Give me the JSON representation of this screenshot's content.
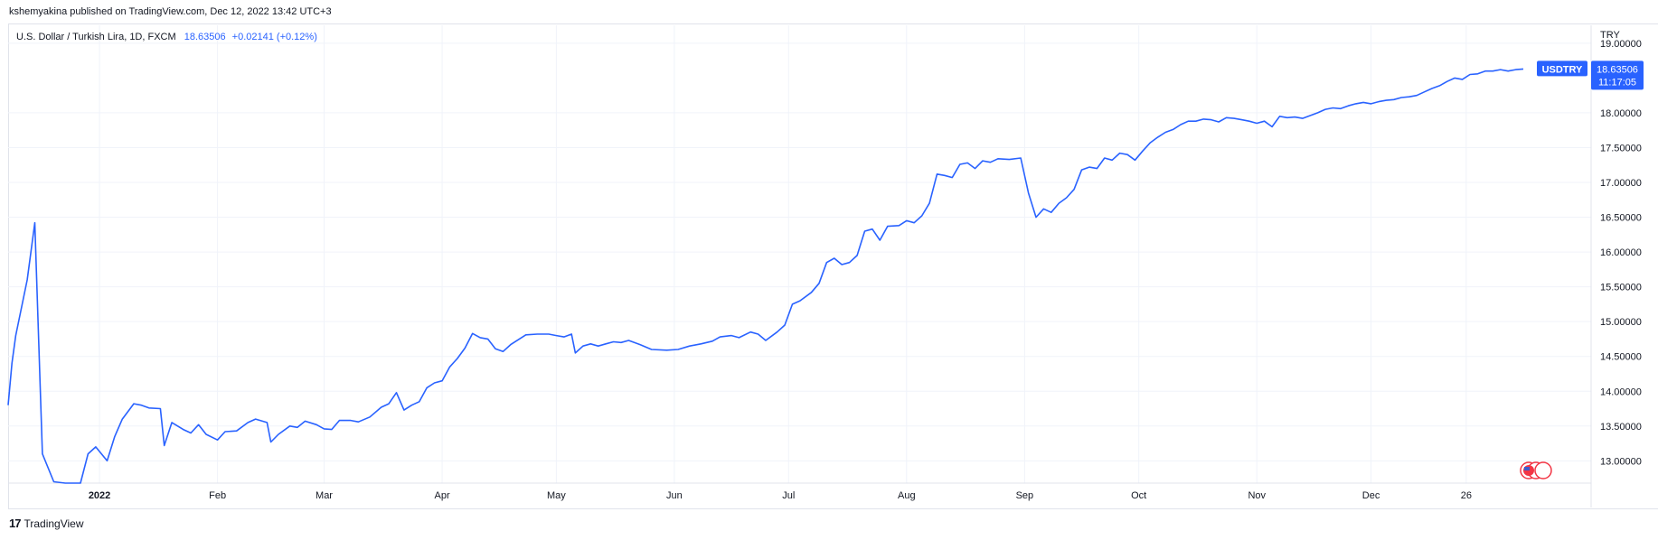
{
  "header": {
    "publish_text": "kshemyakina published on TradingView.com, Dec 12, 2022 13:42 UTC+3"
  },
  "legend": {
    "symbol_text": "U.S. Dollar / Turkish Lira, 1D, FXCM",
    "last_value": "18.63506",
    "change": "+0.02141 (+0.12%)"
  },
  "price_badge": {
    "ticker": "USDTRY",
    "price": "18.63506",
    "countdown": "11:17:05",
    "color": "#2962ff"
  },
  "footer": {
    "brand": "TradingView",
    "logo_icon": "tradingview-logo-icon"
  },
  "colors": {
    "line": "#2962ff",
    "grid": "#f0f3fa",
    "border": "#e0e3eb"
  },
  "chart_data": {
    "type": "line",
    "title": "U.S. Dollar / Turkish Lira, 1D, FXCM",
    "xlabel": "",
    "ylabel": "",
    "currency_label": "TRY",
    "grid": true,
    "ylim": [
      12.68,
      19.05
    ],
    "y_ticks": [
      "19.00000",
      "18.00000",
      "17.50000",
      "17.00000",
      "16.50000",
      "16.00000",
      "15.50000",
      "15.00000",
      "14.50000",
      "14.00000",
      "13.50000",
      "13.00000"
    ],
    "x_ticks": [
      {
        "label": "2022",
        "date": "2022-01-01",
        "bold": true
      },
      {
        "label": "Feb",
        "date": "2022-02-01"
      },
      {
        "label": "Mar",
        "date": "2022-03-01"
      },
      {
        "label": "Apr",
        "date": "2022-04-01"
      },
      {
        "label": "May",
        "date": "2022-05-01"
      },
      {
        "label": "Jun",
        "date": "2022-06-01"
      },
      {
        "label": "Jul",
        "date": "2022-07-01"
      },
      {
        "label": "Aug",
        "date": "2022-08-01"
      },
      {
        "label": "Sep",
        "date": "2022-09-01"
      },
      {
        "label": "Oct",
        "date": "2022-10-01"
      },
      {
        "label": "Nov",
        "date": "2022-11-01"
      },
      {
        "label": "Dec",
        "date": "2022-12-01"
      },
      {
        "label": "26",
        "date": "2022-12-26"
      }
    ],
    "series": [
      {
        "name": "USDTRY",
        "points": [
          [
            "2021-12-08",
            13.8
          ],
          [
            "2021-12-09",
            14.4
          ],
          [
            "2021-12-10",
            14.8
          ],
          [
            "2021-12-13",
            15.6
          ],
          [
            "2021-12-15",
            16.42
          ],
          [
            "2021-12-17",
            13.1
          ],
          [
            "2021-12-20",
            12.7
          ],
          [
            "2021-12-23",
            12.4
          ],
          [
            "2021-12-27",
            12.6
          ],
          [
            "2021-12-29",
            13.1
          ],
          [
            "2021-12-31",
            13.2
          ],
          [
            "2022-01-03",
            13.0
          ],
          [
            "2022-01-05",
            13.35
          ],
          [
            "2022-01-07",
            13.6
          ],
          [
            "2022-01-10",
            13.82
          ],
          [
            "2022-01-12",
            13.8
          ],
          [
            "2022-01-14",
            13.76
          ],
          [
            "2022-01-17",
            13.75
          ],
          [
            "2022-01-18",
            13.22
          ],
          [
            "2022-01-20",
            13.55
          ],
          [
            "2022-01-23",
            13.45
          ],
          [
            "2022-01-25",
            13.4
          ],
          [
            "2022-01-27",
            13.52
          ],
          [
            "2022-01-29",
            13.38
          ],
          [
            "2022-02-01",
            13.3
          ],
          [
            "2022-02-03",
            13.42
          ],
          [
            "2022-02-06",
            13.43
          ],
          [
            "2022-02-09",
            13.55
          ],
          [
            "2022-02-11",
            13.6
          ],
          [
            "2022-02-14",
            13.55
          ],
          [
            "2022-02-15",
            13.27
          ],
          [
            "2022-02-17",
            13.38
          ],
          [
            "2022-02-20",
            13.5
          ],
          [
            "2022-02-22",
            13.48
          ],
          [
            "2022-02-24",
            13.57
          ],
          [
            "2022-02-27",
            13.52
          ],
          [
            "2022-03-01",
            13.46
          ],
          [
            "2022-03-03",
            13.45
          ],
          [
            "2022-03-05",
            13.58
          ],
          [
            "2022-03-08",
            13.58
          ],
          [
            "2022-03-10",
            13.56
          ],
          [
            "2022-03-13",
            13.63
          ],
          [
            "2022-03-16",
            13.77
          ],
          [
            "2022-03-18",
            13.82
          ],
          [
            "2022-03-20",
            13.98
          ],
          [
            "2022-03-22",
            13.73
          ],
          [
            "2022-03-24",
            13.8
          ],
          [
            "2022-03-26",
            13.85
          ],
          [
            "2022-03-28",
            14.05
          ],
          [
            "2022-03-30",
            14.12
          ],
          [
            "2022-04-01",
            14.15
          ],
          [
            "2022-04-03",
            14.35
          ],
          [
            "2022-04-05",
            14.47
          ],
          [
            "2022-04-07",
            14.62
          ],
          [
            "2022-04-09",
            14.83
          ],
          [
            "2022-04-11",
            14.77
          ],
          [
            "2022-04-13",
            14.75
          ],
          [
            "2022-04-15",
            14.61
          ],
          [
            "2022-04-17",
            14.57
          ],
          [
            "2022-04-19",
            14.67
          ],
          [
            "2022-04-21",
            14.74
          ],
          [
            "2022-04-23",
            14.81
          ],
          [
            "2022-04-26",
            14.82
          ],
          [
            "2022-04-29",
            14.82
          ],
          [
            "2022-05-01",
            14.8
          ],
          [
            "2022-05-03",
            14.78
          ],
          [
            "2022-05-05",
            14.82
          ],
          [
            "2022-05-06",
            14.55
          ],
          [
            "2022-05-08",
            14.65
          ],
          [
            "2022-05-10",
            14.68
          ],
          [
            "2022-05-12",
            14.65
          ],
          [
            "2022-05-14",
            14.68
          ],
          [
            "2022-05-16",
            14.71
          ],
          [
            "2022-05-18",
            14.7
          ],
          [
            "2022-05-20",
            14.73
          ],
          [
            "2022-05-23",
            14.67
          ],
          [
            "2022-05-26",
            14.6
          ],
          [
            "2022-05-30",
            14.59
          ],
          [
            "2022-06-02",
            14.6
          ],
          [
            "2022-06-05",
            14.65
          ],
          [
            "2022-06-08",
            14.68
          ],
          [
            "2022-06-11",
            14.72
          ],
          [
            "2022-06-13",
            14.78
          ],
          [
            "2022-06-16",
            14.8
          ],
          [
            "2022-06-18",
            14.77
          ],
          [
            "2022-06-21",
            14.85
          ],
          [
            "2022-06-23",
            14.82
          ],
          [
            "2022-06-25",
            14.73
          ],
          [
            "2022-06-28",
            14.85
          ],
          [
            "2022-06-30",
            14.95
          ],
          [
            "2022-07-02",
            15.25
          ],
          [
            "2022-07-04",
            15.3
          ],
          [
            "2022-07-07",
            15.42
          ],
          [
            "2022-07-09",
            15.55
          ],
          [
            "2022-07-11",
            15.85
          ],
          [
            "2022-07-13",
            15.91
          ],
          [
            "2022-07-15",
            15.82
          ],
          [
            "2022-07-17",
            15.85
          ],
          [
            "2022-07-19",
            15.95
          ],
          [
            "2022-07-21",
            16.3
          ],
          [
            "2022-07-23",
            16.33
          ],
          [
            "2022-07-25",
            16.17
          ],
          [
            "2022-07-27",
            16.37
          ],
          [
            "2022-07-30",
            16.38
          ],
          [
            "2022-08-01",
            16.45
          ],
          [
            "2022-08-03",
            16.42
          ],
          [
            "2022-08-05",
            16.52
          ],
          [
            "2022-08-07",
            16.7
          ],
          [
            "2022-08-09",
            17.12
          ],
          [
            "2022-08-11",
            17.1
          ],
          [
            "2022-08-13",
            17.07
          ],
          [
            "2022-08-15",
            17.26
          ],
          [
            "2022-08-17",
            17.28
          ],
          [
            "2022-08-19",
            17.2
          ],
          [
            "2022-08-21",
            17.31
          ],
          [
            "2022-08-23",
            17.29
          ],
          [
            "2022-08-25",
            17.34
          ],
          [
            "2022-08-28",
            17.33
          ],
          [
            "2022-08-31",
            17.35
          ],
          [
            "2022-09-02",
            16.85
          ],
          [
            "2022-09-04",
            16.5
          ],
          [
            "2022-09-06",
            16.62
          ],
          [
            "2022-09-08",
            16.57
          ],
          [
            "2022-09-10",
            16.7
          ],
          [
            "2022-09-12",
            16.78
          ],
          [
            "2022-09-14",
            16.9
          ],
          [
            "2022-09-16",
            17.18
          ],
          [
            "2022-09-18",
            17.22
          ],
          [
            "2022-09-20",
            17.2
          ],
          [
            "2022-09-22",
            17.35
          ],
          [
            "2022-09-24",
            17.32
          ],
          [
            "2022-09-26",
            17.42
          ],
          [
            "2022-09-28",
            17.4
          ],
          [
            "2022-09-30",
            17.32
          ],
          [
            "2022-10-02",
            17.45
          ],
          [
            "2022-10-04",
            17.57
          ],
          [
            "2022-10-06",
            17.65
          ],
          [
            "2022-10-08",
            17.72
          ],
          [
            "2022-10-10",
            17.76
          ],
          [
            "2022-10-12",
            17.83
          ],
          [
            "2022-10-14",
            17.88
          ],
          [
            "2022-10-16",
            17.88
          ],
          [
            "2022-10-18",
            17.91
          ],
          [
            "2022-10-20",
            17.9
          ],
          [
            "2022-10-22",
            17.87
          ],
          [
            "2022-10-24",
            17.93
          ],
          [
            "2022-10-26",
            17.92
          ],
          [
            "2022-10-28",
            17.9
          ],
          [
            "2022-10-30",
            17.88
          ],
          [
            "2022-11-01",
            17.85
          ],
          [
            "2022-11-03",
            17.88
          ],
          [
            "2022-11-05",
            17.8
          ],
          [
            "2022-11-07",
            17.95
          ],
          [
            "2022-11-09",
            17.93
          ],
          [
            "2022-11-11",
            17.94
          ],
          [
            "2022-11-13",
            17.92
          ],
          [
            "2022-11-15",
            17.96
          ],
          [
            "2022-11-17",
            18.0
          ],
          [
            "2022-11-19",
            18.05
          ],
          [
            "2022-11-21",
            18.07
          ],
          [
            "2022-11-23",
            18.06
          ],
          [
            "2022-11-25",
            18.1
          ],
          [
            "2022-11-27",
            18.13
          ],
          [
            "2022-11-29",
            18.15
          ],
          [
            "2022-12-01",
            18.13
          ],
          [
            "2022-12-03",
            18.16
          ],
          [
            "2022-12-05",
            18.18
          ],
          [
            "2022-12-07",
            18.19
          ],
          [
            "2022-12-09",
            18.22
          ],
          [
            "2022-12-11",
            18.23
          ],
          [
            "2022-12-13",
            18.25
          ],
          [
            "2022-12-15",
            18.3
          ],
          [
            "2022-12-17",
            18.35
          ],
          [
            "2022-12-19",
            18.39
          ],
          [
            "2022-12-21",
            18.45
          ],
          [
            "2022-12-23",
            18.5
          ],
          [
            "2022-12-25",
            18.48
          ],
          [
            "2022-12-27",
            18.55
          ],
          [
            "2022-12-29",
            18.56
          ],
          [
            "2022-12-31",
            18.6
          ],
          [
            "2023-01-02",
            18.6
          ],
          [
            "2023-01-04",
            18.62
          ],
          [
            "2023-01-06",
            18.6
          ],
          [
            "2023-01-08",
            18.62
          ],
          [
            "2023-01-10",
            18.63
          ]
        ]
      }
    ]
  }
}
